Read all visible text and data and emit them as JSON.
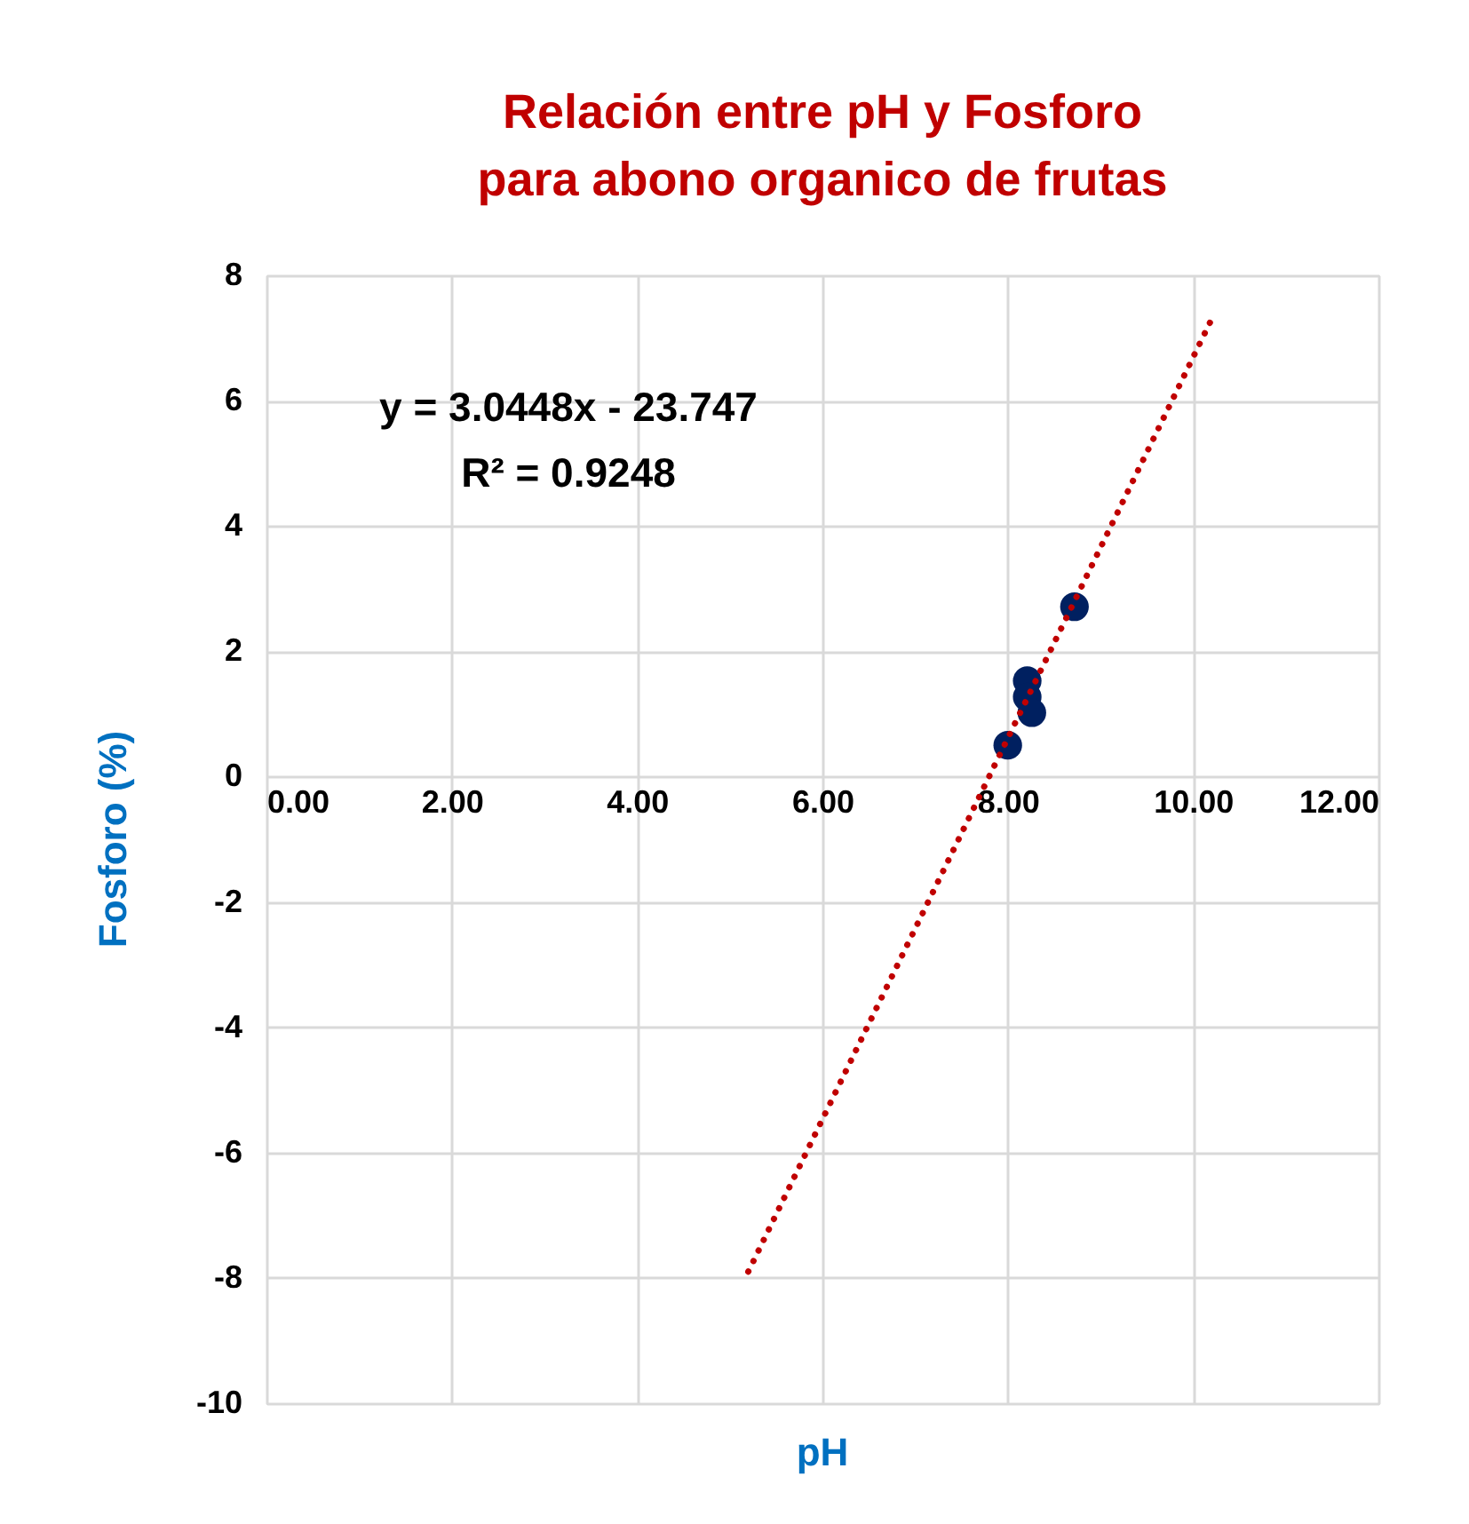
{
  "chart_data": {
    "type": "scatter",
    "title": [
      "Relación entre pH y Fosforo",
      "para abono organico de frutas"
    ],
    "xlabel": "pH",
    "ylabel": "Fosforo (%)",
    "annotations": [
      "y = 3.0448x - 23.747",
      "R² = 0.9248"
    ],
    "series": [
      {
        "type": "scatter",
        "marker": "circle",
        "color": "#002060",
        "x": [
          8.0,
          8.21,
          8.21,
          8.26,
          8.72
        ],
        "values": [
          0.5,
          1.53,
          1.27,
          1.02,
          2.71
        ]
      },
      {
        "type": "line",
        "color": "#c00000",
        "line_style": "dotted",
        "x": [
          5.2,
          10.2
        ],
        "values": [
          -7.9,
          7.3
        ]
      }
    ],
    "xlim": [
      0,
      12
    ],
    "xticks": [
      {
        "value": 0,
        "label": "0.00"
      },
      {
        "value": 2,
        "label": "2.00"
      },
      {
        "value": 4,
        "label": "4.00"
      },
      {
        "value": 6,
        "label": "6.00"
      },
      {
        "value": 8,
        "label": "8.00"
      },
      {
        "value": 10,
        "label": "10.00"
      },
      {
        "value": 12,
        "label": "12.00"
      }
    ],
    "ylim": [
      -10,
      8
    ],
    "yticks": [
      -10,
      -8,
      -6,
      -4,
      -2,
      0,
      2,
      4,
      6,
      8
    ],
    "grid": true
  }
}
